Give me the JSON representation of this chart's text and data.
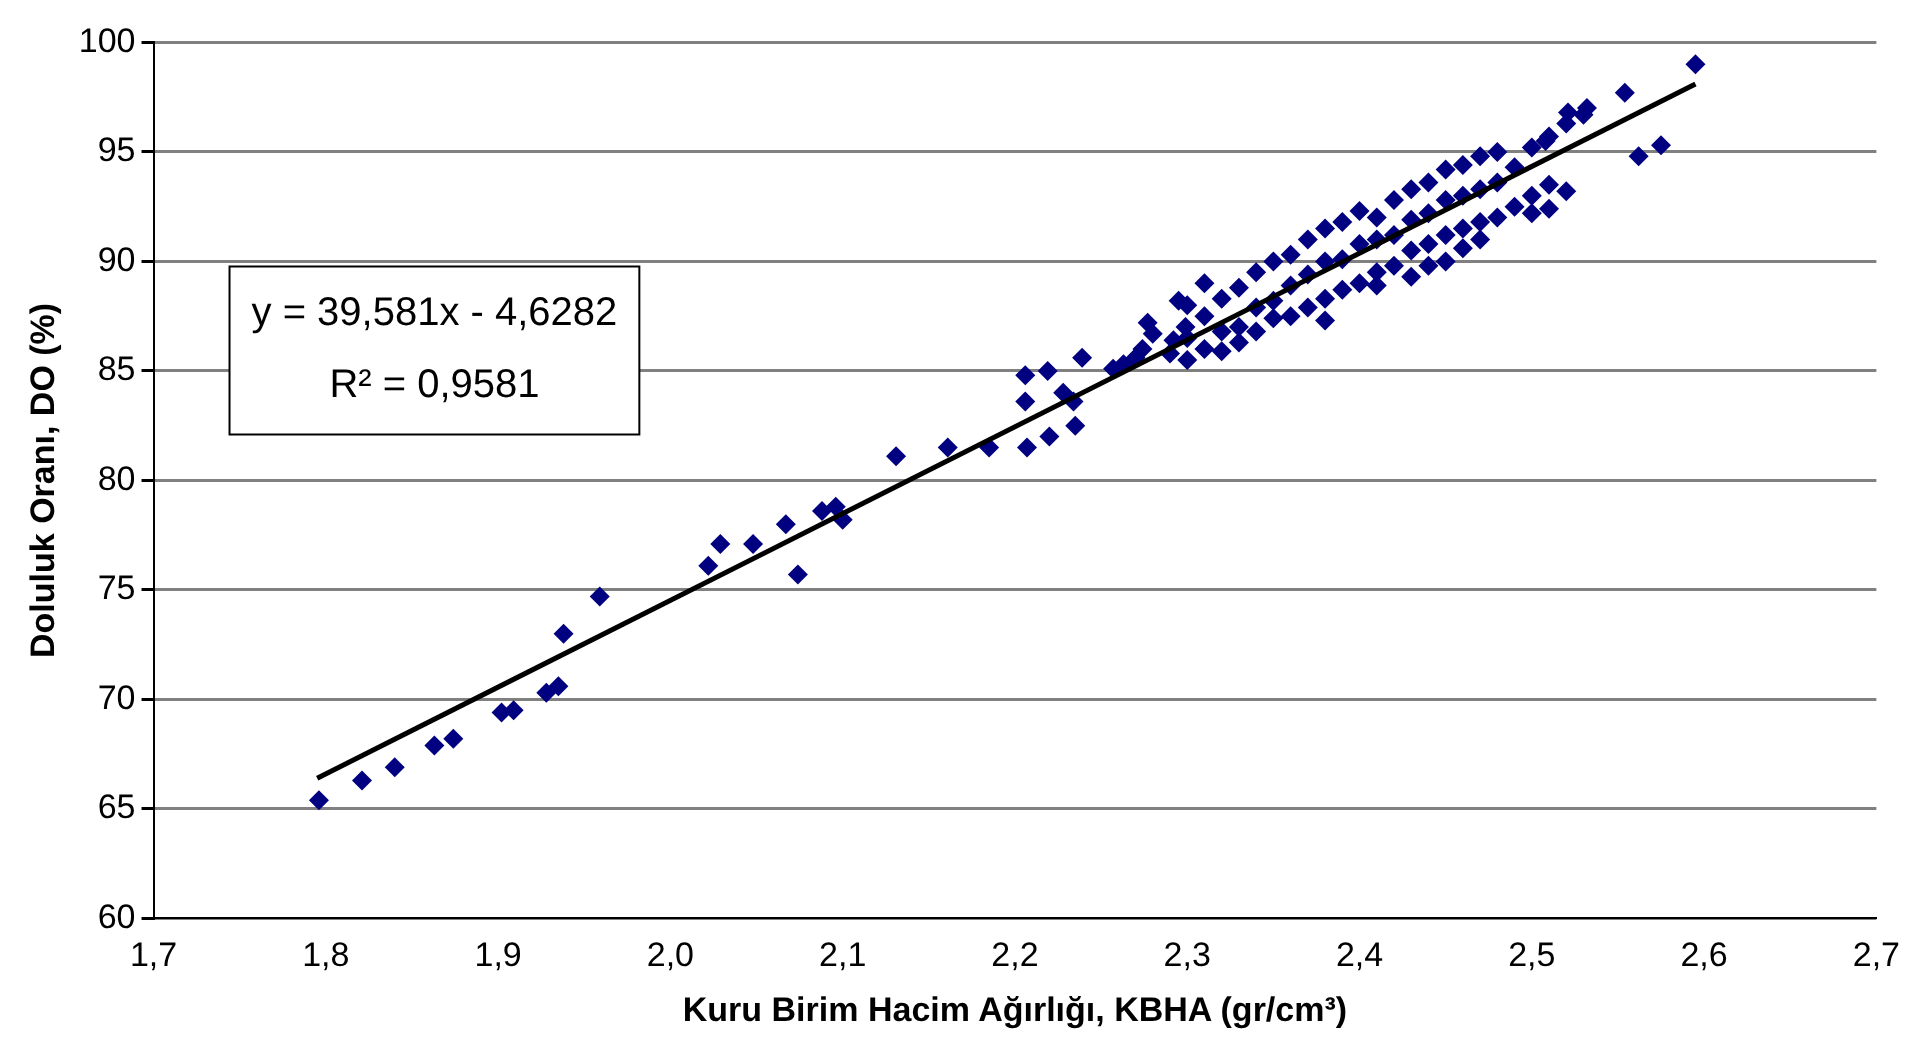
{
  "chart_data": {
    "type": "scatter",
    "xlabel": "Kuru Birim Hacim Ağırlığı, KBHA (gr/cm³)",
    "ylabel": "Doluluk Oranı, DO (%)",
    "xlim": [
      1.7,
      2.7
    ],
    "xticks": [
      {
        "value": 1.7,
        "label": "1,7"
      },
      {
        "value": 1.8,
        "label": "1,8"
      },
      {
        "value": 1.9,
        "label": "1,9"
      },
      {
        "value": 2.0,
        "label": "2,0"
      },
      {
        "value": 2.1,
        "label": "2,1"
      },
      {
        "value": 2.2,
        "label": "2,2"
      },
      {
        "value": 2.3,
        "label": "2,3"
      },
      {
        "value": 2.4,
        "label": "2,4"
      },
      {
        "value": 2.5,
        "label": "2,5"
      },
      {
        "value": 2.6,
        "label": "2,6"
      },
      {
        "value": 2.7,
        "label": "2,7"
      }
    ],
    "ylim": [
      60,
      100
    ],
    "yticks": [
      60,
      65,
      70,
      75,
      80,
      85,
      90,
      95,
      100
    ],
    "grid": "y",
    "legend": false,
    "marker": "diamond",
    "annotations": [
      "y = 39,581x - 4,6282",
      "R² = 0,9581"
    ],
    "series": [
      {
        "color": "#000080",
        "type": "scatter",
        "x": [
          1.796,
          1.821,
          1.84,
          1.863,
          1.874,
          1.902,
          1.909,
          1.928,
          1.935,
          1.938,
          1.959,
          2.022,
          2.029,
          2.048,
          2.067,
          2.074,
          2.088,
          2.096,
          2.1,
          2.131,
          2.161,
          2.185,
          2.206,
          2.206,
          2.207,
          2.22,
          2.219,
          2.228,
          2.234,
          2.235,
          2.239,
          2.257,
          2.263,
          2.27,
          2.274,
          2.277,
          2.28,
          2.29,
          2.292,
          2.295,
          2.299,
          2.3,
          2.3,
          2.3,
          2.31,
          2.31,
          2.31,
          2.32,
          2.32,
          2.32,
          2.33,
          2.33,
          2.33,
          2.34,
          2.34,
          2.34,
          2.35,
          2.35,
          2.35,
          2.36,
          2.36,
          2.36,
          2.37,
          2.37,
          2.37,
          2.38,
          2.38,
          2.38,
          2.38,
          2.39,
          2.39,
          2.39,
          2.4,
          2.4,
          2.4,
          2.41,
          2.41,
          2.41,
          2.41,
          2.42,
          2.42,
          2.42,
          2.43,
          2.43,
          2.43,
          2.43,
          2.44,
          2.44,
          2.44,
          2.44,
          2.45,
          2.45,
          2.45,
          2.45,
          2.46,
          2.46,
          2.46,
          2.46,
          2.47,
          2.47,
          2.47,
          2.47,
          2.48,
          2.48,
          2.48,
          2.49,
          2.49,
          2.5,
          2.5,
          2.5,
          2.51,
          2.51,
          2.51,
          2.52,
          2.52,
          2.53,
          2.508,
          2.521,
          2.532,
          2.554,
          2.562,
          2.575,
          2.595
        ],
        "values": [
          65.4,
          66.3,
          66.9,
          67.9,
          68.2,
          69.4,
          69.5,
          70.3,
          70.6,
          73.0,
          74.7,
          76.1,
          77.1,
          77.1,
          78.0,
          75.7,
          78.6,
          78.8,
          78.2,
          81.1,
          81.5,
          81.5,
          83.6,
          84.8,
          81.5,
          82.0,
          85.0,
          84.0,
          83.6,
          82.5,
          85.6,
          85.1,
          85.3,
          85.6,
          86.0,
          87.2,
          86.7,
          85.8,
          86.4,
          88.2,
          87.0,
          86.5,
          88.0,
          85.5,
          87.5,
          86.0,
          89.0,
          86.8,
          88.3,
          85.9,
          88.8,
          87.0,
          86.3,
          89.5,
          87.9,
          86.8,
          90.0,
          88.2,
          87.4,
          90.3,
          88.9,
          87.5,
          91.0,
          89.4,
          87.9,
          91.5,
          90.0,
          88.3,
          87.3,
          91.8,
          90.1,
          88.7,
          92.3,
          90.8,
          89.0,
          92.0,
          91.0,
          89.5,
          88.9,
          92.8,
          91.2,
          89.8,
          93.3,
          91.9,
          90.5,
          89.3,
          93.6,
          92.2,
          90.8,
          89.8,
          94.2,
          92.8,
          91.2,
          90.0,
          94.4,
          93.0,
          91.5,
          90.6,
          94.8,
          93.3,
          91.8,
          91.0,
          95.0,
          93.6,
          92.0,
          94.3,
          92.5,
          95.2,
          93.0,
          92.2,
          95.7,
          93.5,
          92.4,
          96.3,
          93.2,
          96.7,
          95.5,
          96.8,
          97.0,
          97.7,
          94.8,
          95.3,
          99.0
        ]
      },
      {
        "color": "#000000",
        "type": "line",
        "marker": "none",
        "x": [
          1.795,
          2.595
        ],
        "values": [
          66.4,
          98.1
        ]
      }
    ]
  }
}
